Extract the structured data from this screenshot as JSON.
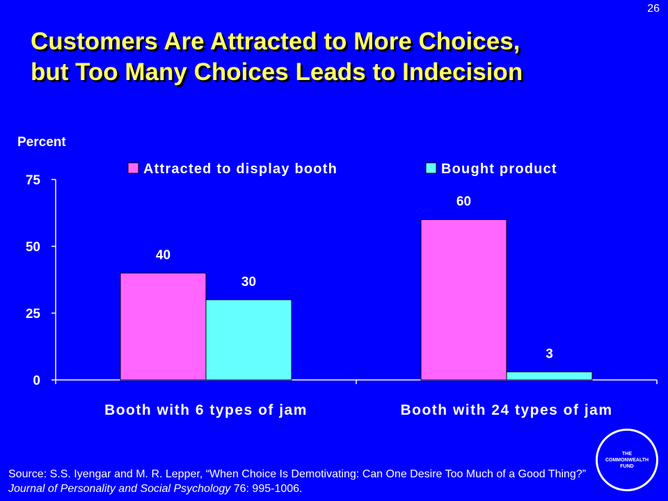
{
  "slide_number": "26",
  "title_lines": [
    "Customers Are Attracted to More Choices,",
    "but Too Many Choices Leads to Indecision"
  ],
  "colors": {
    "background": "#0000ff",
    "title": "#ffff66",
    "series1": "#ff66ff",
    "series2": "#66ffff",
    "text": "#ffffff"
  },
  "chart_data": {
    "type": "bar",
    "title": "",
    "ylabel": "Percent",
    "xlabel": "",
    "categories": [
      "Booth with 6 types of jam",
      "Booth with 24 types of jam"
    ],
    "series": [
      {
        "name": "Attracted to display booth",
        "values": [
          40,
          60
        ],
        "color": "#ff66ff"
      },
      {
        "name": "Bought product",
        "values": [
          30,
          3
        ],
        "color": "#66ffff"
      }
    ],
    "yticks": [
      0,
      25,
      50,
      75
    ],
    "ylim": [
      0,
      75
    ],
    "data_labels": true,
    "grid": false,
    "legend_position": "top"
  },
  "source": {
    "prefix": "Source: S.S. Iyengar and M. R. Lepper, “When Choice Is Demotivating: Can One Desire Too Much of a Good Thing?” ",
    "journal": "Journal of Personality and Social Psychology",
    "suffix": " 76: 995-1006."
  },
  "logo": {
    "line1": "THE",
    "line2": "COMMONWEALTH",
    "line3": "FUND"
  }
}
